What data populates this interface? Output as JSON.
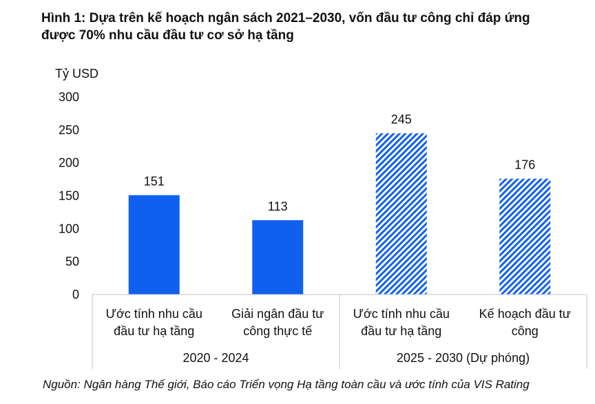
{
  "title_lines": [
    "Hình 1: Dựa trên kế hoạch ngân sách 2021–2030, vốn đầu tư công chỉ đáp ứng",
    "được 70% nhu cầu đầu tư cơ sở hạ tầng"
  ],
  "source": "Nguồn: Ngân hàng Thế giới, Báo cáo Triển vọng Hạ tầng toàn cầu và ước tính của VIS Rating",
  "colors": {
    "bar": "#1060f0",
    "text": "#111111",
    "divider": "#d0d0d0"
  },
  "chart_data": {
    "type": "bar",
    "ylabel": "Tỷ USD",
    "ylim": [
      0,
      300
    ],
    "yticks": [
      0,
      50,
      100,
      150,
      200,
      250,
      300
    ],
    "grid": false,
    "categories": [
      [
        "Ước tính nhu cầu",
        "đầu tư hạ tầng"
      ],
      [
        "Giải ngân đầu tư",
        "công thực tế"
      ],
      [
        "Ước tính nhu cầu",
        "đầu tư hạ tầng"
      ],
      [
        "Kế hoạch đầu tư",
        "công"
      ]
    ],
    "values": [
      151,
      113,
      245,
      176
    ],
    "data_labels": [
      "151",
      "113",
      "245",
      "176"
    ],
    "fill": [
      "solid",
      "solid",
      "hatched",
      "hatched"
    ],
    "groups": [
      {
        "label": "2020 - 2024",
        "members": [
          0,
          1
        ]
      },
      {
        "label": "2025 - 2030 (Dự phóng)",
        "members": [
          2,
          3
        ]
      }
    ]
  }
}
